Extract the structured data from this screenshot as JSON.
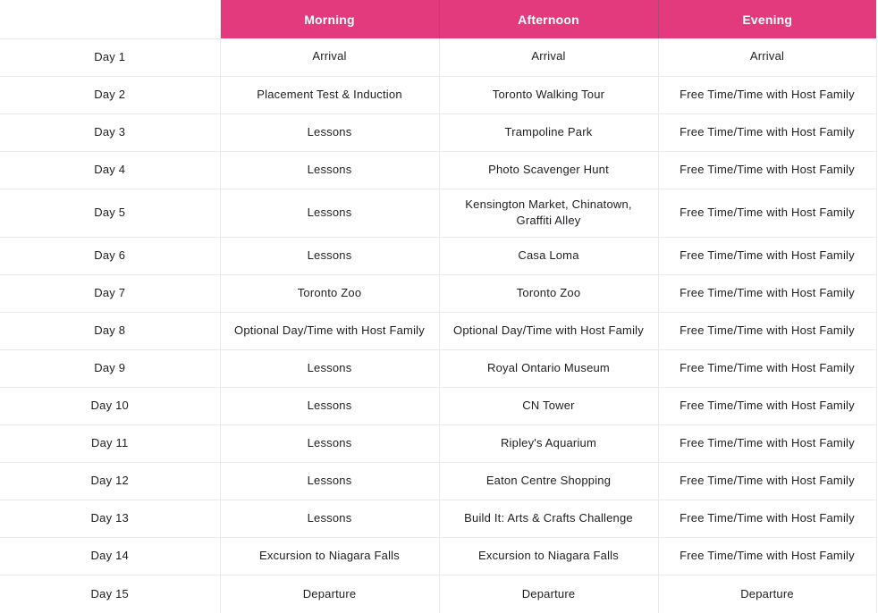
{
  "colors": {
    "header_bg": "#E23A7D",
    "header_text": "#FFFFFF",
    "cell_text": "#1E1E22",
    "border": "#E9E9EE"
  },
  "table": {
    "columns": [
      "",
      "Morning",
      "Afternoon",
      "Evening"
    ],
    "rows": [
      {
        "day": "Day 1",
        "morning": "Arrival",
        "afternoon": "Arrival",
        "evening": "Arrival"
      },
      {
        "day": "Day 2",
        "morning": "Placement Test & Induction",
        "afternoon": "Toronto Walking Tour",
        "evening": "Free Time/Time with Host Family"
      },
      {
        "day": "Day 3",
        "morning": "Lessons",
        "afternoon": "Trampoline Park",
        "evening": "Free Time/Time with Host Family"
      },
      {
        "day": "Day 4",
        "morning": "Lessons",
        "afternoon": "Photo Scavenger Hunt",
        "evening": "Free Time/Time with Host Family"
      },
      {
        "day": "Day 5",
        "morning": "Lessons",
        "afternoon": "Kensington Market, Chinatown, Graffiti Alley",
        "evening": "Free Time/Time with Host Family"
      },
      {
        "day": "Day 6",
        "morning": "Lessons",
        "afternoon": "Casa Loma",
        "evening": "Free Time/Time with Host Family"
      },
      {
        "day": "Day 7",
        "morning": "Toronto Zoo",
        "afternoon": "Toronto Zoo",
        "evening": "Free Time/Time with Host Family"
      },
      {
        "day": "Day 8",
        "morning": "Optional Day/Time with Host Family",
        "afternoon": "Optional Day/Time with Host Family",
        "evening": "Free Time/Time with Host Family"
      },
      {
        "day": "Day 9",
        "morning": "Lessons",
        "afternoon": "Royal Ontario Museum",
        "evening": "Free Time/Time with Host Family"
      },
      {
        "day": "Day 10",
        "morning": "Lessons",
        "afternoon": "CN Tower",
        "evening": "Free Time/Time with Host Family"
      },
      {
        "day": "Day 11",
        "morning": "Lessons",
        "afternoon": "Ripley's Aquarium",
        "evening": "Free Time/Time with Host Family"
      },
      {
        "day": "Day 12",
        "morning": "Lessons",
        "afternoon": "Eaton Centre Shopping",
        "evening": "Free Time/Time with Host Family"
      },
      {
        "day": "Day 13",
        "morning": "Lessons",
        "afternoon": "Build It: Arts & Crafts Challenge",
        "evening": "Free Time/Time with Host Family"
      },
      {
        "day": "Day 14",
        "morning": "Excursion to Niagara Falls",
        "afternoon": "Excursion to Niagara Falls",
        "evening": "Free Time/Time with Host Family"
      },
      {
        "day": "Day 15",
        "morning": "Departure",
        "afternoon": "Departure",
        "evening": "Departure"
      }
    ]
  }
}
